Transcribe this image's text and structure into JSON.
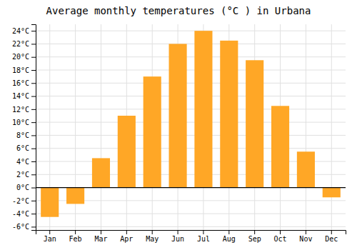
{
  "chart_data": {
    "type": "bar",
    "title": "Average monthly temperatures (°C ) in Urbana",
    "categories": [
      "Jan",
      "Feb",
      "Mar",
      "Apr",
      "May",
      "Jun",
      "Jul",
      "Aug",
      "Sep",
      "Oct",
      "Nov",
      "Dec"
    ],
    "values": [
      -4.5,
      -2.5,
      4.5,
      11.0,
      17.0,
      22.0,
      24.0,
      22.5,
      19.5,
      12.5,
      5.5,
      -1.5
    ],
    "color": "#FFA726",
    "ylim": [
      -6.5,
      25
    ],
    "yticks": [
      {
        "value": -6,
        "label": "-6°C"
      },
      {
        "value": -4,
        "label": "-4°C"
      },
      {
        "value": -2,
        "label": "-2°C"
      },
      {
        "value": 0,
        "label": "0°C"
      },
      {
        "value": 2,
        "label": "2°C"
      },
      {
        "value": 4,
        "label": "4°C"
      },
      {
        "value": 6,
        "label": "6°C"
      },
      {
        "value": 8,
        "label": "8°C"
      },
      {
        "value": 10,
        "label": "10°C"
      },
      {
        "value": 12,
        "label": "12°C"
      },
      {
        "value": 14,
        "label": "14°C"
      },
      {
        "value": 16,
        "label": "16°C"
      },
      {
        "value": 18,
        "label": "18°C"
      },
      {
        "value": 20,
        "label": "20°C"
      },
      {
        "value": 22,
        "label": "22°C"
      },
      {
        "value": 24,
        "label": "24°C"
      }
    ],
    "grid": true
  }
}
